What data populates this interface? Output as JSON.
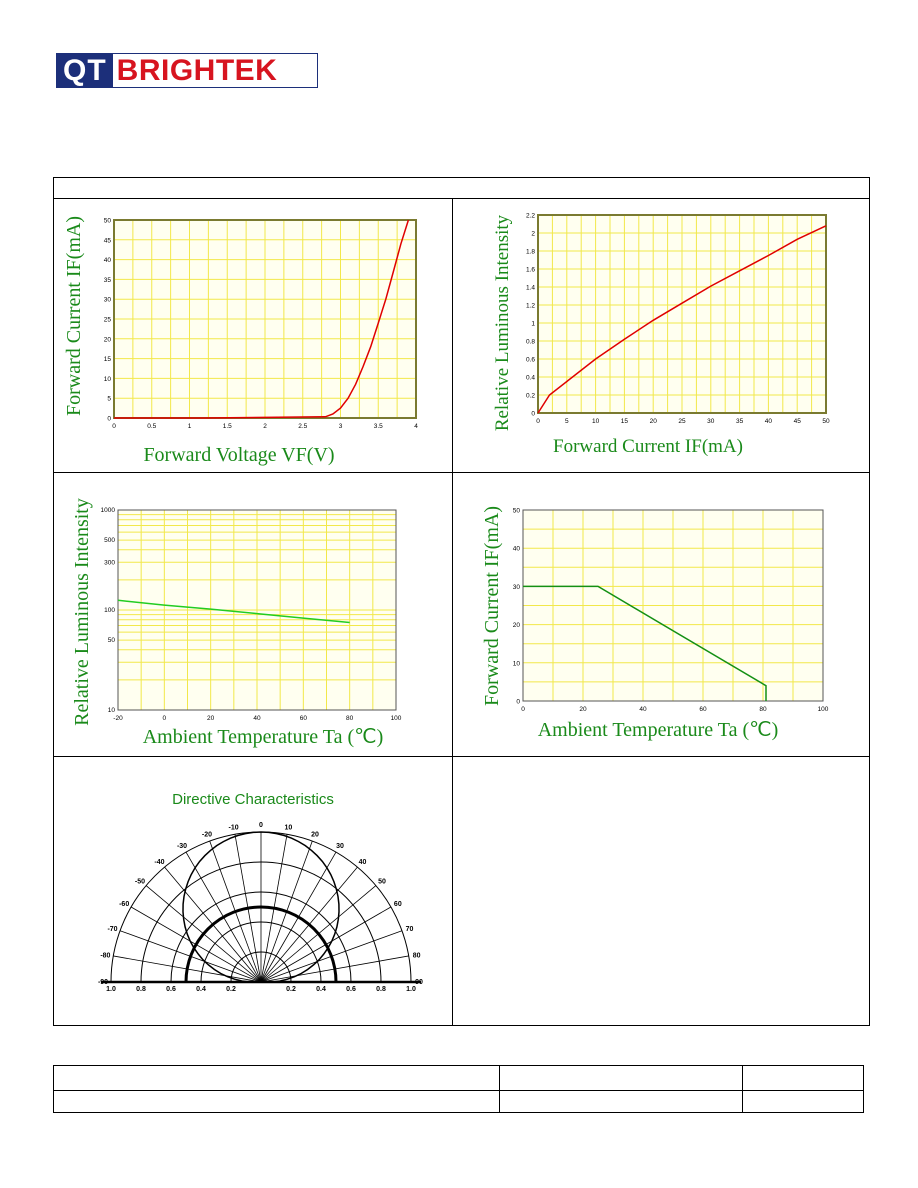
{
  "logo": {
    "part1": "QT",
    "part2": "BRIGHTEK"
  },
  "chart_data": [
    {
      "type": "line",
      "xlabel": "Forward Voltage VF(V)",
      "ylabel": "Forward Current IF(mA)",
      "xlim": [
        0,
        4
      ],
      "ylim": [
        0,
        50
      ],
      "x_ticks": [
        "0",
        "0.5",
        "1",
        "1.5",
        "2",
        "2.5",
        "3",
        "3.5",
        "4"
      ],
      "y_ticks": [
        "0",
        "5",
        "10",
        "15",
        "20",
        "25",
        "30",
        "35",
        "40",
        "45",
        "50"
      ],
      "grid": true,
      "series": [
        {
          "color": "#e00000",
          "x": [
            0,
            1.2,
            2.8,
            2.9,
            3.0,
            3.1,
            3.2,
            3.3,
            3.4,
            3.5,
            3.6,
            3.7,
            3.8,
            3.9
          ],
          "y": [
            0,
            0,
            0.3,
            1,
            2.5,
            5,
            8.5,
            13,
            18,
            24,
            30,
            37,
            44,
            50
          ]
        }
      ]
    },
    {
      "type": "line",
      "xlabel": "Forward Current IF(mA)",
      "ylabel": "Relative Luminous Intensity",
      "xlim": [
        0,
        50
      ],
      "ylim": [
        0,
        2.2
      ],
      "x_ticks": [
        "0",
        "5",
        "10",
        "15",
        "20",
        "25",
        "30",
        "35",
        "40",
        "45",
        "50"
      ],
      "y_ticks": [
        "0",
        "0.2",
        "0.4",
        "0.6",
        "0.8",
        "1",
        "1.2",
        "1.4",
        "1.6",
        "1.8",
        "2",
        "2.2"
      ],
      "grid": true,
      "series": [
        {
          "color": "#e00000",
          "x": [
            0,
            2,
            5,
            10,
            15,
            20,
            25,
            30,
            35,
            40,
            45,
            50
          ],
          "y": [
            0,
            0.2,
            0.35,
            0.6,
            0.82,
            1.03,
            1.22,
            1.41,
            1.58,
            1.75,
            1.93,
            2.08
          ]
        }
      ]
    },
    {
      "type": "line",
      "xlabel": "Ambient Temperature Ta (℃)",
      "ylabel": "Relative Luminous Intensity",
      "xlim": [
        -20,
        100
      ],
      "ylim": [
        10,
        1000
      ],
      "yscale": "log",
      "x_ticks": [
        "-20",
        "0",
        "20",
        "40",
        "60",
        "80",
        "100"
      ],
      "y_ticks": [
        {
          "v": 10,
          "label": "10"
        },
        {
          "v": 50,
          "label": "50"
        },
        {
          "v": 100,
          "label": "100"
        },
        {
          "v": 300,
          "label": "300"
        },
        {
          "v": 500,
          "label": "500"
        },
        {
          "v": 1000,
          "label": "1000"
        }
      ],
      "grid": true,
      "series": [
        {
          "color": "#22cc22",
          "x": [
            -20,
            0,
            20,
            40,
            60,
            80
          ],
          "y": [
            125,
            112,
            102,
            92,
            83,
            75
          ]
        }
      ]
    },
    {
      "type": "line",
      "xlabel": "Ambient Temperature Ta (℃)",
      "ylabel": "Forward Current IF(mA)",
      "xlim": [
        0,
        100
      ],
      "ylim": [
        0,
        50
      ],
      "x_ticks": [
        "0",
        "20",
        "40",
        "60",
        "80",
        "100"
      ],
      "y_ticks": [
        "0",
        "10",
        "20",
        "30",
        "40",
        "50"
      ],
      "grid": true,
      "series": [
        {
          "color": "#149014",
          "x": [
            0,
            25,
            81,
            81
          ],
          "y": [
            30,
            30,
            4,
            0
          ]
        }
      ]
    }
  ],
  "polar": {
    "title": "Directive Characteristics",
    "angle_labels_left": [
      "-10",
      "-20",
      "-30",
      "-40",
      "-50",
      "-60",
      "-70",
      "-80",
      "-90"
    ],
    "angle_labels_right": [
      "10",
      "20",
      "30",
      "40",
      "50",
      "60",
      "70",
      "80",
      "90"
    ],
    "zero_label": "0",
    "radial_labels": [
      "1.0",
      "0.8",
      "0.6",
      "0.4",
      "0.2",
      "0.2",
      "0.4",
      "0.6",
      "0.8",
      "1.0"
    ]
  },
  "footer": {
    "cells": [
      "",
      "",
      "",
      "",
      "",
      ""
    ]
  }
}
